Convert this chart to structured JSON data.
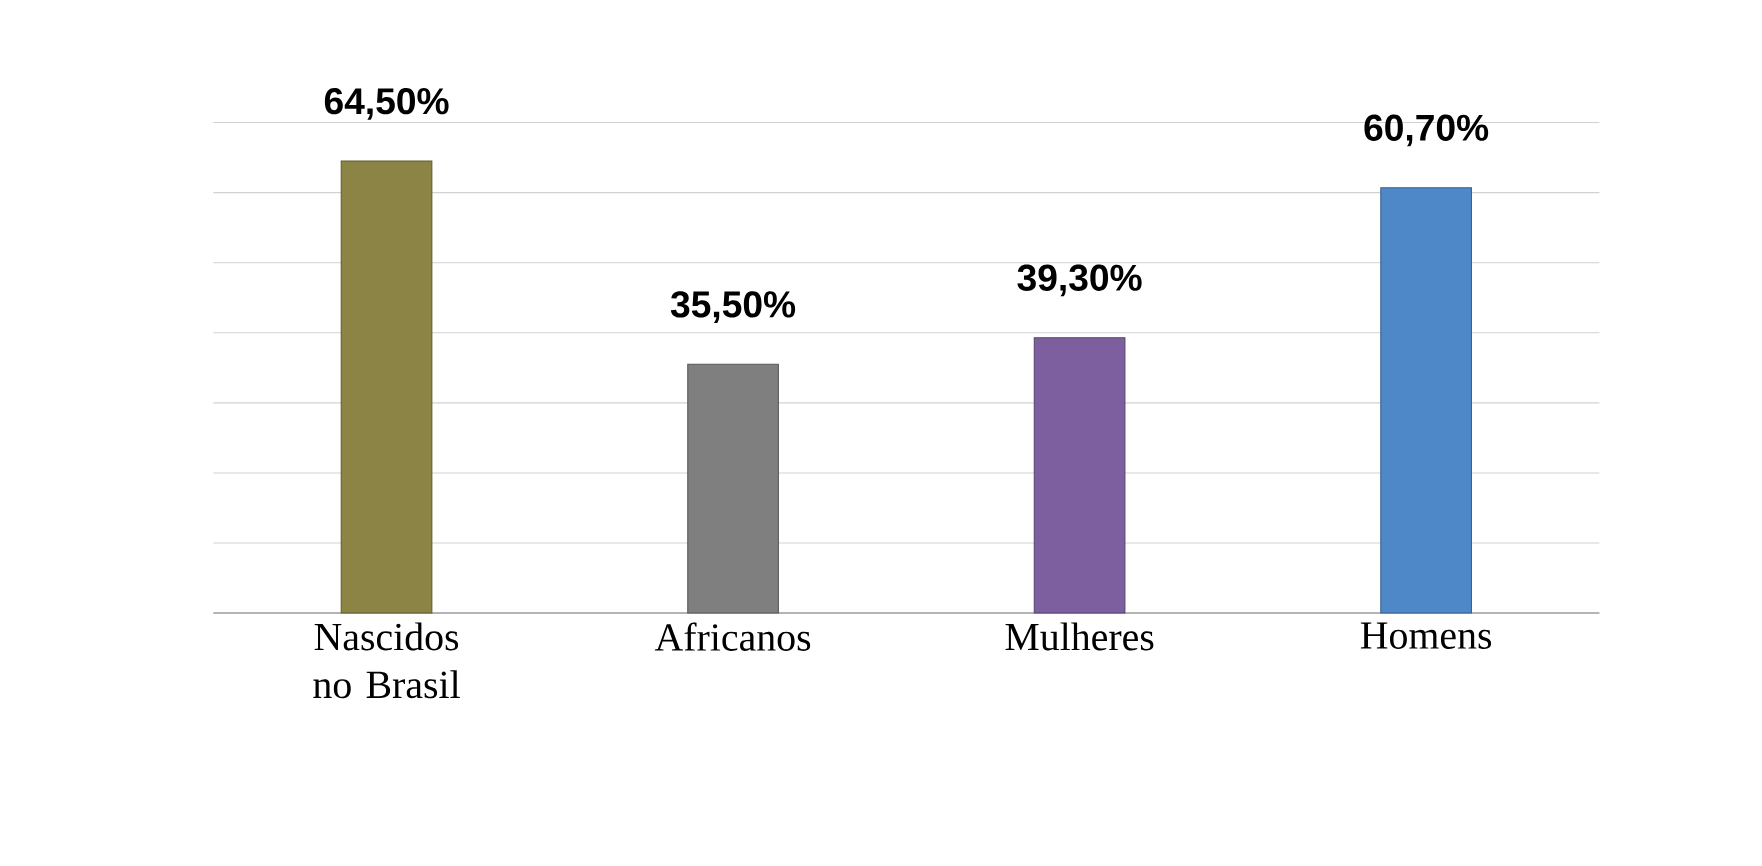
{
  "chart_data": {
    "type": "bar",
    "categories": [
      "Nascidos no Brasil",
      "Africanos",
      "Mulheres",
      "Homens"
    ],
    "values": [
      64.5,
      35.5,
      39.3,
      60.7
    ],
    "colors": [
      "#8c8445",
      "#7f7f7f",
      "#7d5fa0",
      "#4f88c8"
    ],
    "value_labels": [
      "64,50%",
      "35,50%",
      "39,30%",
      "60,70%"
    ],
    "grid": "y",
    "tick_labels": "x"
  }
}
